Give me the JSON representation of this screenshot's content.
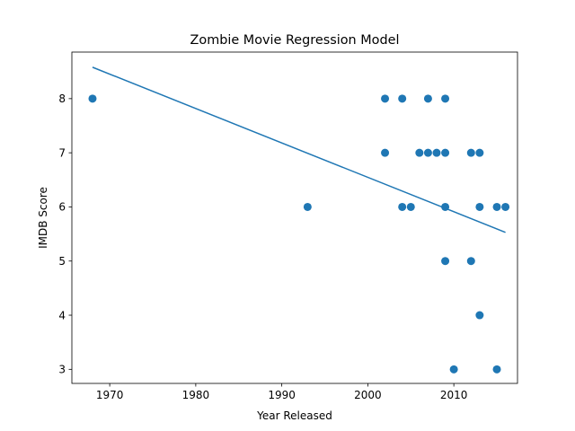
{
  "chart_data": {
    "type": "scatter",
    "title": "Zombie Movie Regression Model",
    "xlabel": "Year Released",
    "ylabel": "IMDB Score",
    "xlim": [
      1965.6,
      2017.4
    ],
    "ylim": [
      2.74,
      8.86
    ],
    "xticks": [
      1970,
      1980,
      1990,
      2000,
      2010
    ],
    "yticks": [
      3,
      4,
      5,
      6,
      7,
      8
    ],
    "grid": false,
    "legend": "none",
    "series": [
      {
        "kind": "points",
        "color": "#1f77b4",
        "points": [
          {
            "x": 1968,
            "y": 8
          },
          {
            "x": 1993,
            "y": 6
          },
          {
            "x": 2002,
            "y": 8
          },
          {
            "x": 2002,
            "y": 7
          },
          {
            "x": 2004,
            "y": 8
          },
          {
            "x": 2004,
            "y": 6
          },
          {
            "x": 2005,
            "y": 6
          },
          {
            "x": 2006,
            "y": 7
          },
          {
            "x": 2007,
            "y": 8
          },
          {
            "x": 2007,
            "y": 7
          },
          {
            "x": 2008,
            "y": 7
          },
          {
            "x": 2009,
            "y": 8
          },
          {
            "x": 2009,
            "y": 7
          },
          {
            "x": 2009,
            "y": 6
          },
          {
            "x": 2009,
            "y": 5
          },
          {
            "x": 2010,
            "y": 3
          },
          {
            "x": 2012,
            "y": 7
          },
          {
            "x": 2012,
            "y": 5
          },
          {
            "x": 2013,
            "y": 7
          },
          {
            "x": 2013,
            "y": 6
          },
          {
            "x": 2013,
            "y": 4
          },
          {
            "x": 2015,
            "y": 6
          },
          {
            "x": 2015,
            "y": 3
          },
          {
            "x": 2016,
            "y": 6
          }
        ]
      },
      {
        "kind": "line",
        "color": "#1f77b4",
        "points": [
          {
            "x": 1968,
            "y": 8.58
          },
          {
            "x": 2016,
            "y": 5.53
          }
        ]
      }
    ]
  }
}
